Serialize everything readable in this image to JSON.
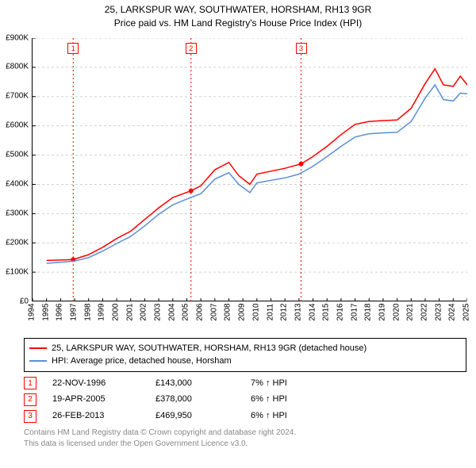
{
  "title_line1": "25, LARKSPUR WAY, SOUTHWATER, HORSHAM, RH13 9GR",
  "title_line2": "Price paid vs. HM Land Registry's House Price Index (HPI)",
  "chart": {
    "type": "line",
    "background_color": "#ffffff",
    "grid_color": "#d0d0d0",
    "x": {
      "min": 1994,
      "max": 2025,
      "ticks": [
        1994,
        1995,
        1996,
        1997,
        1998,
        1999,
        2000,
        2001,
        2002,
        2003,
        2004,
        2005,
        2006,
        2007,
        2008,
        2009,
        2010,
        2011,
        2012,
        2013,
        2014,
        2015,
        2016,
        2017,
        2018,
        2019,
        2020,
        2021,
        2022,
        2023,
        2024,
        2025
      ],
      "label_fontsize": 10
    },
    "y": {
      "min": 0,
      "max": 900000,
      "tick_step": 100000,
      "ticks": [
        0,
        100000,
        200000,
        300000,
        400000,
        500000,
        600000,
        700000,
        800000,
        900000
      ],
      "tick_labels": [
        "£0",
        "£100K",
        "£200K",
        "£300K",
        "£400K",
        "£500K",
        "£600K",
        "£700K",
        "£800K",
        "£900K"
      ],
      "label_fontsize": 10
    },
    "series": [
      {
        "name": "25, LARKSPUR WAY, SOUTHWATER, HORSHAM, RH13 9GR (detached house)",
        "color": "#ff0000",
        "line_width": 1.5,
        "points": [
          [
            1995.0,
            140000
          ],
          [
            1996.9,
            143000
          ],
          [
            1998.0,
            160000
          ],
          [
            1999.0,
            185000
          ],
          [
            2000.0,
            215000
          ],
          [
            2001.0,
            240000
          ],
          [
            2002.0,
            280000
          ],
          [
            2003.0,
            320000
          ],
          [
            2004.0,
            355000
          ],
          [
            2005.3,
            378000
          ],
          [
            2006.0,
            395000
          ],
          [
            2007.0,
            450000
          ],
          [
            2008.0,
            475000
          ],
          [
            2008.7,
            430000
          ],
          [
            2009.5,
            400000
          ],
          [
            2010.0,
            435000
          ],
          [
            2011.0,
            445000
          ],
          [
            2012.0,
            455000
          ],
          [
            2013.15,
            469950
          ],
          [
            2014.0,
            495000
          ],
          [
            2015.0,
            530000
          ],
          [
            2016.0,
            570000
          ],
          [
            2017.0,
            605000
          ],
          [
            2018.0,
            615000
          ],
          [
            2019.0,
            618000
          ],
          [
            2020.0,
            620000
          ],
          [
            2021.0,
            660000
          ],
          [
            2022.0,
            745000
          ],
          [
            2022.7,
            795000
          ],
          [
            2023.3,
            740000
          ],
          [
            2024.0,
            735000
          ],
          [
            2024.5,
            770000
          ],
          [
            2025.0,
            740000
          ]
        ]
      },
      {
        "name": "HPI: Average price, detached house, Horsham",
        "color": "#5a8fd8",
        "line_width": 1.5,
        "points": [
          [
            1995.0,
            130000
          ],
          [
            1997.0,
            138000
          ],
          [
            1998.0,
            150000
          ],
          [
            1999.0,
            172000
          ],
          [
            2000.0,
            198000
          ],
          [
            2001.0,
            222000
          ],
          [
            2002.0,
            258000
          ],
          [
            2003.0,
            298000
          ],
          [
            2004.0,
            330000
          ],
          [
            2005.0,
            350000
          ],
          [
            2006.0,
            368000
          ],
          [
            2007.0,
            418000
          ],
          [
            2008.0,
            440000
          ],
          [
            2008.7,
            400000
          ],
          [
            2009.5,
            372000
          ],
          [
            2010.0,
            405000
          ],
          [
            2011.0,
            414000
          ],
          [
            2012.0,
            422000
          ],
          [
            2013.0,
            435000
          ],
          [
            2014.0,
            462000
          ],
          [
            2015.0,
            495000
          ],
          [
            2016.0,
            530000
          ],
          [
            2017.0,
            562000
          ],
          [
            2018.0,
            573000
          ],
          [
            2019.0,
            576000
          ],
          [
            2020.0,
            578000
          ],
          [
            2021.0,
            615000
          ],
          [
            2022.0,
            695000
          ],
          [
            2022.7,
            740000
          ],
          [
            2023.3,
            690000
          ],
          [
            2024.0,
            685000
          ],
          [
            2024.5,
            712000
          ],
          [
            2025.0,
            710000
          ]
        ]
      }
    ],
    "sale_markers": [
      {
        "n": "1",
        "x": 1996.9,
        "date": "22-NOV-1996",
        "price": "£143,000",
        "change": "7% ↑ HPI"
      },
      {
        "n": "2",
        "x": 2005.3,
        "date": "19-APR-2005",
        "price": "£378,000",
        "change": "6% ↑ HPI"
      },
      {
        "n": "3",
        "x": 2013.15,
        "date": "26-FEB-2013",
        "price": "£469,950",
        "change": "6% ↑ HPI"
      }
    ],
    "marker_line_color": "#ff0000",
    "marker_dot_color": "#ff0000",
    "marker_dot_radius": 3
  },
  "footer_line1": "Contains HM Land Registry data © Crown copyright and database right 2024.",
  "footer_line2": "This data is licensed under the Open Government Licence v3.0."
}
